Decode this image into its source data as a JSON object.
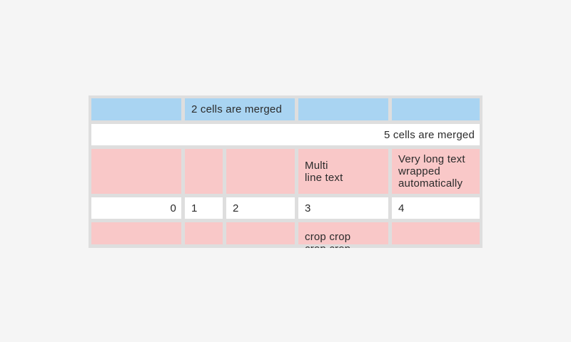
{
  "page": {
    "background_color": "#f5f5f5"
  },
  "table": {
    "grid_color": "#dedede",
    "colors": {
      "blue_cell": "#a9d4f2",
      "pink_cell": "#f9c8c8",
      "white_cell": "#ffffff",
      "text": "#2b2b2b"
    },
    "rows": [
      {
        "name": "blue-header-row",
        "cells": [
          {
            "text": ""
          },
          {
            "text": "2 cells are merged"
          },
          {
            "text": ""
          },
          {
            "text": ""
          }
        ]
      },
      {
        "name": "full-width-merged-row",
        "cells": [
          {
            "text": "5 cells are merged"
          }
        ]
      },
      {
        "name": "pink-multiline-row",
        "cells": [
          {
            "text": ""
          },
          {
            "text": ""
          },
          {
            "text": ""
          },
          {
            "text": "Multi\nline text"
          },
          {
            "text": "Very long text wrapped automatically"
          }
        ]
      },
      {
        "name": "numbers-row",
        "cells": [
          {
            "text": "0"
          },
          {
            "text": "1"
          },
          {
            "text": "2"
          },
          {
            "text": "3"
          },
          {
            "text": "4"
          }
        ]
      },
      {
        "name": "cropped-pink-row",
        "cells": [
          {
            "text": ""
          },
          {
            "text": ""
          },
          {
            "text": ""
          },
          {
            "text": "crop crop crop crop"
          },
          {
            "text": ""
          }
        ]
      }
    ]
  }
}
